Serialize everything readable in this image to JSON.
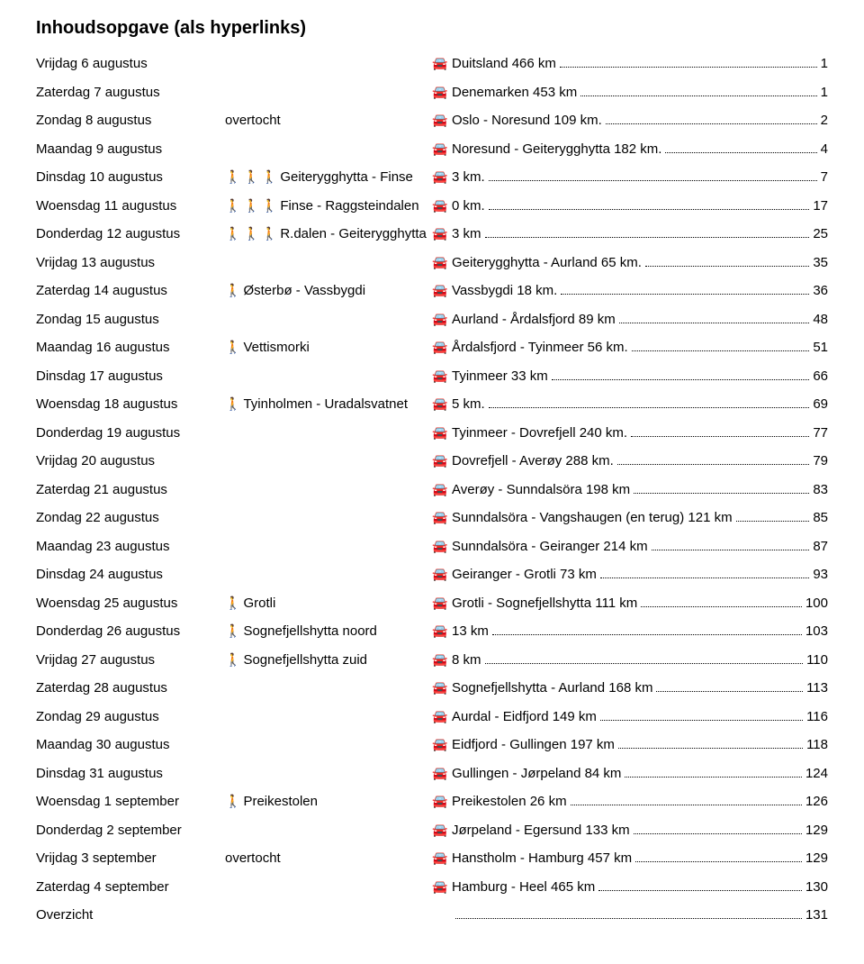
{
  "title": "Inhoudsopgave  (als hyperlinks)",
  "icons": {
    "hiker": "🚶",
    "car": "🚘"
  },
  "rows": [
    {
      "day": "Vrijdag 6 augustus",
      "hikers": 0,
      "activity": "",
      "car": true,
      "dest": "Duitsland  466 km",
      "page": "1"
    },
    {
      "day": "Zaterdag 7 augustus",
      "hikers": 0,
      "activity": "",
      "car": true,
      "dest": "Denemarken  453 km",
      "page": "1"
    },
    {
      "day": "Zondag 8 augustus",
      "hikers": 0,
      "activity": "overtocht",
      "car": true,
      "dest": "Oslo - Noresund  109 km.",
      "page": "2"
    },
    {
      "day": "Maandag 9 augustus",
      "hikers": 0,
      "activity": "",
      "car": true,
      "dest": "Noresund - Geiterygghytta  182 km.",
      "page": "4"
    },
    {
      "day": "Dinsdag 10 augustus",
      "hikers": 3,
      "activity": "Geiterygghytta - Finse",
      "car": true,
      "dest": "3 km.",
      "page": "7"
    },
    {
      "day": "Woensdag 11 augustus",
      "hikers": 3,
      "activity": "Finse - Raggsteindalen",
      "car": true,
      "dest": "0 km.",
      "page": "17"
    },
    {
      "day": "Donderdag 12 augustus",
      "hikers": 3,
      "activity": "R.dalen - Geiterygghytta",
      "car": true,
      "dest": "3 km",
      "page": "25"
    },
    {
      "day": "Vrijdag 13 augustus",
      "hikers": 0,
      "activity": "",
      "car": true,
      "dest": "Geiterygghytta - Aurland  65 km.",
      "page": "35"
    },
    {
      "day": "Zaterdag 14 augustus",
      "hikers": 1,
      "activity": "Østerbø - Vassbygdi",
      "car": true,
      "dest": "Vassbygdi  18 km.",
      "page": "36"
    },
    {
      "day": "Zondag 15 augustus",
      "hikers": 0,
      "activity": "",
      "car": true,
      "dest": "Aurland - Årdalsfjord  89 km",
      "page": "48"
    },
    {
      "day": "Maandag 16 augustus",
      "hikers": 1,
      "activity": "Vettismorki",
      "car": true,
      "dest": "Årdalsfjord - Tyinmeer  56 km.",
      "page": "51"
    },
    {
      "day": "Dinsdag 17 augustus",
      "hikers": 0,
      "activity": "",
      "car": true,
      "dest": "Tyinmeer  33 km",
      "page": "66"
    },
    {
      "day": "Woensdag 18 augustus",
      "hikers": 1,
      "activity": "Tyinholmen - Uradalsvatnet",
      "car": true,
      "dest": "5 km.",
      "page": "69"
    },
    {
      "day": "Donderdag 19 augustus",
      "hikers": 0,
      "activity": "",
      "car": true,
      "dest": "Tyinmeer - Dovrefjell  240 km.",
      "page": "77"
    },
    {
      "day": "Vrijdag 20 augustus",
      "hikers": 0,
      "activity": "",
      "car": true,
      "dest": "Dovrefjell - Averøy  288 km.",
      "page": "79"
    },
    {
      "day": "Zaterdag 21 augustus",
      "hikers": 0,
      "activity": "",
      "car": true,
      "dest": "Averøy - Sunndalsöra  198 km",
      "page": "83"
    },
    {
      "day": "Zondag 22 augustus",
      "hikers": 0,
      "activity": "",
      "car": true,
      "dest": "Sunndalsöra - Vangshaugen (en terug) 121 km",
      "page": "85"
    },
    {
      "day": "Maandag 23 augustus",
      "hikers": 0,
      "activity": "",
      "car": true,
      "dest": "Sunndalsöra - Geiranger  214 km",
      "page": "87"
    },
    {
      "day": "Dinsdag 24 augustus",
      "hikers": 0,
      "activity": "",
      "car": true,
      "dest": "Geiranger - Grotli  73 km",
      "page": "93"
    },
    {
      "day": "Woensdag 25 augustus",
      "hikers": 1,
      "activity": "Grotli",
      "car": true,
      "dest": "Grotli - Sognefjellshytta  111 km",
      "page": "100"
    },
    {
      "day": "Donderdag 26 augustus",
      "hikers": 1,
      "activity": "Sognefjellshytta noord",
      "car": true,
      "dest": "13 km",
      "page": "103"
    },
    {
      "day": "Vrijdag 27 augustus",
      "hikers": 1,
      "activity": "Sognefjellshytta zuid",
      "car": true,
      "dest": "8 km",
      "page": "110"
    },
    {
      "day": "Zaterdag 28 augustus",
      "hikers": 0,
      "activity": "",
      "car": true,
      "dest": "Sognefjellshytta - Aurland  168 km",
      "page": "113"
    },
    {
      "day": "Zondag 29 augustus",
      "hikers": 0,
      "activity": "",
      "car": true,
      "dest": "Aurdal - Eidfjord  149 km",
      "page": "116"
    },
    {
      "day": "Maandag 30 augustus",
      "hikers": 0,
      "activity": "",
      "car": true,
      "dest": "Eidfjord - Gullingen  197 km",
      "page": "118"
    },
    {
      "day": "Dinsdag 31 augustus",
      "hikers": 0,
      "activity": "",
      "car": true,
      "dest": "Gullingen - Jørpeland  84 km",
      "page": "124"
    },
    {
      "day": "Woensdag 1 september",
      "hikers": 1,
      "activity": "Preikestolen",
      "car": true,
      "dest": "Preikestolen  26 km",
      "page": "126"
    },
    {
      "day": "Donderdag 2 september",
      "hikers": 0,
      "activity": "",
      "car": true,
      "dest": "Jørpeland - Egersund  133 km",
      "page": "129"
    },
    {
      "day": "Vrijdag 3 september",
      "hikers": 0,
      "activity": "overtocht",
      "car": true,
      "dest": "Hanstholm - Hamburg  457 km",
      "page": "129"
    },
    {
      "day": "Zaterdag 4 september",
      "hikers": 0,
      "activity": "",
      "car": true,
      "dest": "Hamburg - Heel  465 km",
      "page": "130"
    },
    {
      "day": "Overzicht",
      "hikers": 0,
      "activity": "",
      "car": false,
      "dest": "",
      "page": "131"
    }
  ]
}
